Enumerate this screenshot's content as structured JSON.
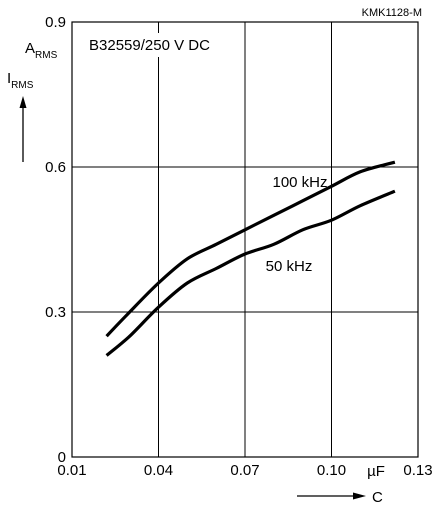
{
  "chart_data": {
    "type": "line",
    "figure_id": "KMK1128-M",
    "title": "B32559/250 V DC",
    "ylabel": {
      "main": "I",
      "sub": "RMS"
    },
    "yunit": {
      "main": "A",
      "sub": "RMS"
    },
    "xlabel": "C",
    "xunit": "µF",
    "xlim": [
      0.01,
      0.13
    ],
    "ylim": [
      0,
      0.9
    ],
    "xticks": [
      0.01,
      0.04,
      0.07,
      0.1,
      0.13
    ],
    "xtick_labels": [
      "0.01",
      "0.04",
      "0.07",
      "0.10",
      "0.13"
    ],
    "yticks": [
      0,
      0.3,
      0.6,
      0.9
    ],
    "ytick_labels": [
      "0",
      "0.3",
      "0.6",
      "0.9"
    ],
    "grid": true,
    "series": [
      {
        "name": "100 kHz",
        "x": [
          0.022,
          0.03,
          0.04,
          0.05,
          0.06,
          0.07,
          0.08,
          0.09,
          0.1,
          0.11,
          0.122
        ],
        "y": [
          0.25,
          0.3,
          0.36,
          0.41,
          0.44,
          0.47,
          0.5,
          0.53,
          0.56,
          0.59,
          0.61
        ]
      },
      {
        "name": "50 kHz",
        "x": [
          0.022,
          0.03,
          0.04,
          0.05,
          0.06,
          0.07,
          0.08,
          0.09,
          0.1,
          0.11,
          0.122
        ],
        "y": [
          0.21,
          0.25,
          0.31,
          0.36,
          0.39,
          0.42,
          0.44,
          0.47,
          0.49,
          0.52,
          0.55
        ]
      }
    ]
  }
}
